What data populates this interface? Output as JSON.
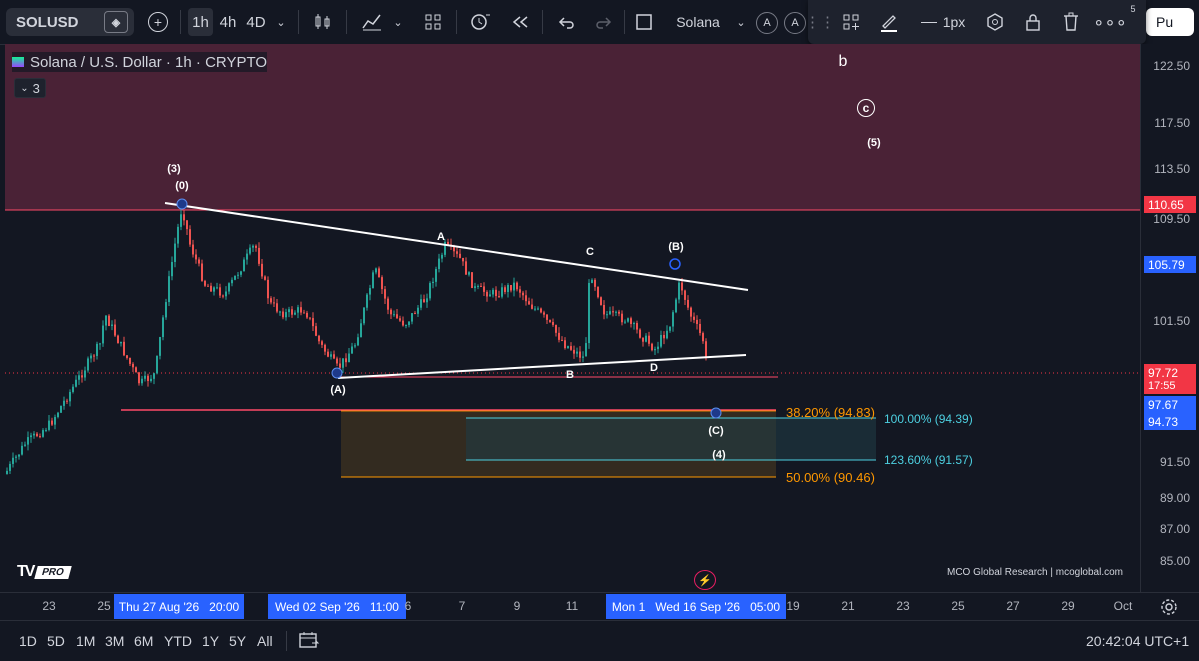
{
  "toolbar": {
    "symbol": "SOLUSD",
    "intervals": [
      "1h",
      "4h",
      "4D"
    ],
    "chart_name": "Solana",
    "a_label": "A",
    "publish": "Pu"
  },
  "drawbar": {
    "width_label": "1px",
    "badge": "5"
  },
  "legend": {
    "title": "Solana / U.S. Dollar · 1h · CRYPTO",
    "indicator_count": "3"
  },
  "price_scale": {
    "labels": [
      "122.50",
      "117.50",
      "113.50",
      "109.50",
      "101.50",
      "91.50",
      "89.00",
      "87.00",
      "85.00"
    ],
    "tags": [
      {
        "value": "110.65",
        "color": "#f23645"
      },
      {
        "value": "105.79",
        "color": "#2962ff"
      },
      {
        "value": "97.72",
        "sub": "17:55",
        "color": "#f23645"
      },
      {
        "value": "97.67",
        "color": "#2962ff"
      },
      {
        "value": "94.73",
        "color": "#2962ff"
      }
    ]
  },
  "time_scale": {
    "labels": [
      "23",
      "25",
      "6",
      "7",
      "9",
      "11",
      "19",
      "21",
      "23",
      "25",
      "27",
      "29",
      "Oct"
    ],
    "selected": [
      "Thu 27 Aug '26",
      "20:00",
      "Wed 02 Sep '26",
      "11:00",
      "Mon 1",
      "Wed 16 Sep '26",
      "05:00"
    ]
  },
  "bottom": {
    "ranges": [
      "1D",
      "5D",
      "1M",
      "3M",
      "6M",
      "YTD",
      "1Y",
      "5Y",
      "All"
    ],
    "clock": "20:42:04 UTC+1"
  },
  "waves": {
    "w3": "(3)",
    "w0": "(0)",
    "A": "A",
    "C": "C",
    "B_paren": "(B)",
    "A_paren": "(A)",
    "B": "B",
    "D": "D",
    "C_paren": "(C)",
    "w4": "(4)",
    "b": "b",
    "circled_c": "c",
    "w5": "(5)"
  },
  "fib": {
    "f382": "38.20% (94.83)",
    "f100": "100.00% (94.39)",
    "f1236": "123.60% (91.57)",
    "f50": "50.00% (90.46)"
  },
  "watermark": {
    "logo": "PRO",
    "credit": "MCO Global Research | mcoglobal.com"
  },
  "colors": {
    "up": "#26a69a",
    "down": "#ef5350",
    "zone": "#4a2236",
    "line": "#ff4a68"
  }
}
